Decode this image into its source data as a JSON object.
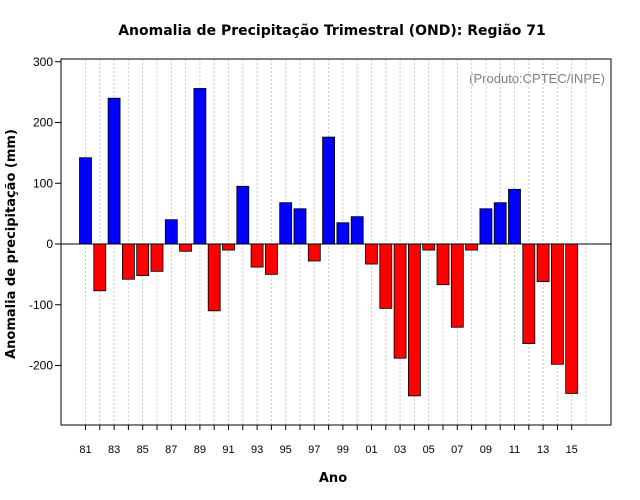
{
  "chart_data": {
    "type": "bar",
    "title": "Anomalia de Precipitação Trimestral (OND): Região 71",
    "xlabel": "Ano",
    "ylabel": "Anomalia de precipitação (mm)",
    "credit": "(Produto:CPTEC/INPE)",
    "ylim": [
      -300,
      310
    ],
    "yticks": [
      300,
      200,
      100,
      0,
      -100,
      -200
    ],
    "xtick_labels": [
      "81",
      "83",
      "85",
      "87",
      "89",
      "91",
      "93",
      "95",
      "97",
      "99",
      "01",
      "03",
      "05",
      "07",
      "09",
      "11",
      "13",
      "15"
    ],
    "years": [
      1981,
      1982,
      1983,
      1984,
      1985,
      1986,
      1987,
      1988,
      1989,
      1990,
      1991,
      1992,
      1993,
      1994,
      1995,
      1996,
      1997,
      1998,
      1999,
      2000,
      2001,
      2002,
      2003,
      2004,
      2005,
      2006,
      2007,
      2008,
      2009,
      2010,
      2011,
      2012,
      2013,
      2014,
      2015
    ],
    "values": [
      142,
      -77,
      240,
      -58,
      -52,
      -45,
      40,
      -12,
      256,
      -110,
      -10,
      95,
      -38,
      -50,
      68,
      58,
      -28,
      176,
      35,
      45,
      -33,
      -106,
      -188,
      -250,
      -10,
      -67,
      -137,
      -10,
      58,
      68,
      90,
      -164,
      -62,
      -198,
      -246
    ],
    "colors": {
      "positive": "#0000ff",
      "negative": "#ff0000",
      "grid": "#c8c8c8"
    }
  }
}
